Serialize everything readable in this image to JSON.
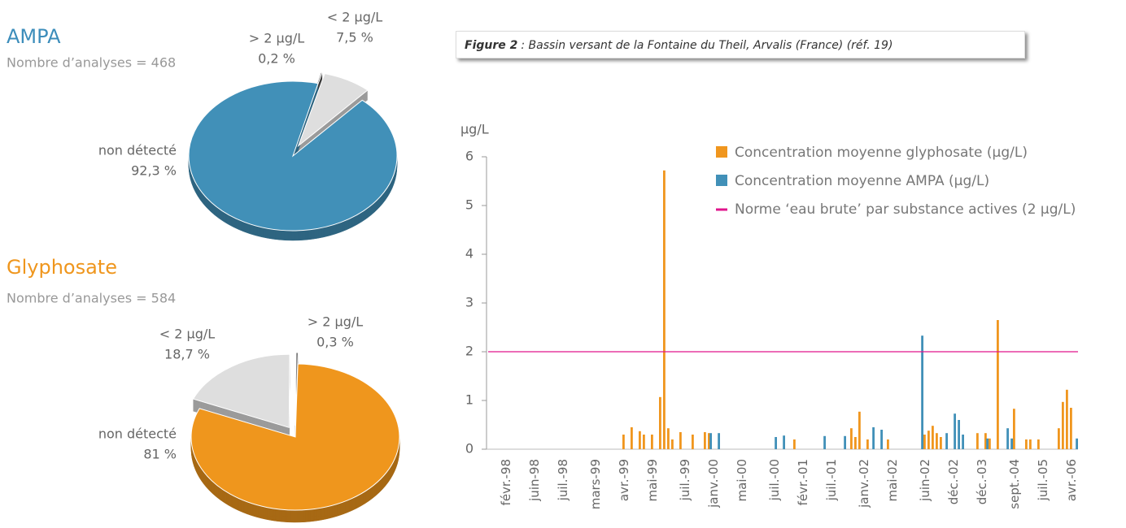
{
  "chart_data": [
    {
      "type": "pie",
      "title": "AMPA",
      "subtitle": "Nombre d’analyses = 468",
      "categories": [
        "> 2 µg/L",
        "< 2 µg/L",
        "non détecté"
      ],
      "values": [
        0.2,
        7.5,
        92.3
      ],
      "value_labels": [
        "0,2 %",
        "7,5 %",
        "92,3 %"
      ],
      "colors": [
        "#555555",
        "#dedede",
        "#4190b8"
      ],
      "title_color": "#3c8dbb"
    },
    {
      "type": "pie",
      "title": "Glyphosate",
      "subtitle": "Nombre d’analyses = 584",
      "categories": [
        "< 2 µg/L",
        "> 2 µg/L",
        "non détecté"
      ],
      "values": [
        18.7,
        0.3,
        81
      ],
      "value_labels": [
        "18,7 %",
        "0,3 %",
        "81 %"
      ],
      "colors": [
        "#dedede",
        "#555555",
        "#ef961d"
      ],
      "title_color": "#ef961d"
    },
    {
      "type": "bar",
      "caption_label": "Figure 2",
      "caption": ": Bassin versant de la Fontaine du Theil, Arvalis (France) (réf. 19)",
      "y_label": "µg/L",
      "ylim": [
        0,
        6
      ],
      "yticks": [
        0,
        1,
        2,
        3,
        4,
        5,
        6
      ],
      "categories": [
        null,
        null,
        null,
        null,
        "févr.-98",
        null,
        null,
        null,
        null,
        null,
        null,
        "juin-98",
        null,
        null,
        null,
        null,
        null,
        null,
        "juil.-98",
        null,
        null,
        null,
        null,
        null,
        null,
        null,
        "mars-99",
        null,
        null,
        null,
        null,
        null,
        null,
        "avr.-99",
        null,
        null,
        null,
        null,
        null,
        null,
        "mai-99",
        null,
        null,
        null,
        null,
        null,
        null,
        null,
        "juil.-99",
        null,
        null,
        null,
        null,
        null,
        null,
        "janv.-00",
        null,
        null,
        null,
        null,
        null,
        null,
        "mai-00",
        null,
        null,
        null,
        null,
        null,
        null,
        null,
        "juil.-00",
        null,
        null,
        null,
        null,
        null,
        null,
        "févr.-01",
        null,
        null,
        null,
        null,
        null,
        null,
        "juil.-01",
        null,
        null,
        null,
        null,
        null,
        null,
        null,
        "janv.-02",
        null,
        null,
        null,
        null,
        null,
        null,
        "mai-02",
        null,
        null,
        null,
        null,
        null,
        null,
        null,
        "juin-02",
        null,
        null,
        null,
        null,
        null,
        null,
        "déc.-02",
        null,
        null,
        null,
        null,
        null,
        null,
        "déc.-03",
        null,
        null,
        null,
        null,
        null,
        null,
        null,
        "sept.-04",
        null,
        null,
        null,
        null,
        null,
        null,
        "juil.-05",
        null,
        null,
        null,
        null,
        null,
        null,
        "avr.-06",
        null
      ],
      "series": [
        {
          "name": "Concentration moyenne glyphosate (µg/L)",
          "color": "#f0961e",
          "values": [
            null,
            null,
            null,
            null,
            null,
            null,
            null,
            null,
            null,
            null,
            null,
            null,
            null,
            null,
            null,
            null,
            null,
            null,
            null,
            null,
            null,
            null,
            null,
            null,
            null,
            null,
            null,
            null,
            null,
            null,
            null,
            null,
            null,
            0.3,
            null,
            0.45,
            null,
            0.37,
            0.3,
            null,
            0.3,
            null,
            1.07,
            5.72,
            0.43,
            0.2,
            null,
            0.35,
            null,
            null,
            0.3,
            null,
            null,
            0.35,
            0.33,
            null,
            null,
            null,
            null,
            null,
            null,
            null,
            null,
            null,
            null,
            null,
            null,
            null,
            null,
            null,
            null,
            null,
            null,
            null,
            null,
            0.2,
            null,
            null,
            null,
            null,
            null,
            null,
            null,
            null,
            null,
            null,
            null,
            null,
            null,
            0.43,
            0.25,
            0.77,
            null,
            0.2,
            null,
            null,
            null,
            null,
            0.2,
            null,
            null,
            null,
            null,
            null,
            null,
            null,
            null,
            0.3,
            0.38,
            0.48,
            0.33,
            0.25,
            null,
            null,
            null,
            null,
            null,
            null,
            null,
            null,
            0.33,
            null,
            0.33,
            0.22,
            null,
            2.65,
            null,
            null,
            null,
            0.83,
            null,
            null,
            0.2,
            0.2,
            null,
            0.2,
            null,
            null,
            null,
            null,
            0.43,
            0.97,
            1.22,
            0.85,
            null
          ]
        },
        {
          "name": "Concentration moyenne AMPA (µg/L)",
          "color": "#4190b8",
          "values": [
            null,
            null,
            null,
            null,
            null,
            null,
            null,
            null,
            null,
            null,
            null,
            null,
            null,
            null,
            null,
            null,
            null,
            null,
            null,
            null,
            null,
            null,
            null,
            null,
            null,
            null,
            null,
            null,
            null,
            null,
            null,
            null,
            null,
            null,
            null,
            null,
            null,
            null,
            null,
            null,
            null,
            null,
            null,
            null,
            null,
            null,
            null,
            null,
            null,
            null,
            null,
            null,
            null,
            null,
            0.33,
            null,
            0.33,
            null,
            null,
            null,
            null,
            null,
            null,
            null,
            null,
            null,
            null,
            null,
            null,
            null,
            0.25,
            null,
            0.28,
            null,
            null,
            null,
            null,
            null,
            null,
            null,
            null,
            null,
            0.27,
            null,
            null,
            null,
            null,
            0.27,
            null,
            null,
            null,
            null,
            null,
            null,
            0.45,
            null,
            0.4,
            null,
            null,
            null,
            null,
            null,
            null,
            null,
            null,
            null,
            2.33,
            null,
            null,
            null,
            null,
            null,
            0.33,
            null,
            0.73,
            0.6,
            0.3,
            null,
            null,
            null,
            null,
            null,
            0.22,
            null,
            null,
            null,
            null,
            0.43,
            0.22,
            null,
            null,
            null,
            null,
            null,
            null,
            null,
            null,
            null,
            null,
            null,
            null,
            null,
            null,
            null,
            0.22
          ]
        }
      ],
      "reference_lines": [
        {
          "name": "Norme ‘eau brute’ par substance actives (2 µg/L)",
          "value": 2,
          "color": "#e0158c"
        }
      ]
    }
  ]
}
